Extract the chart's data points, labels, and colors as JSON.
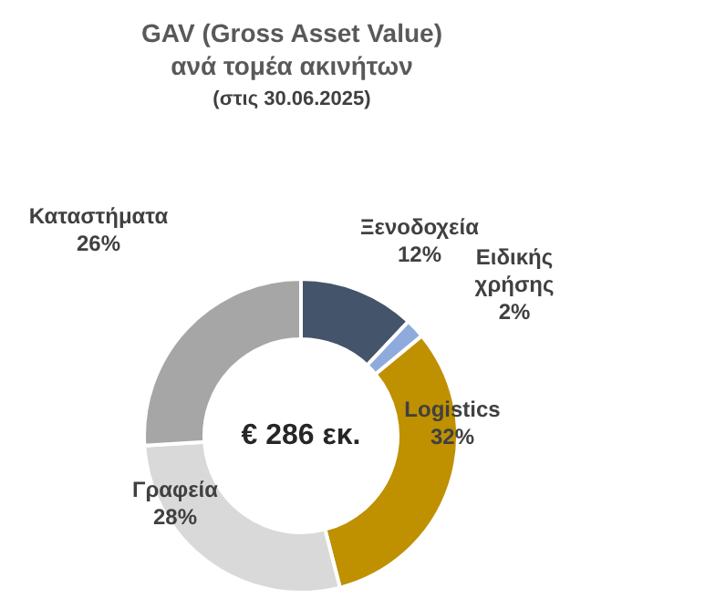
{
  "chart_data": {
    "type": "donut",
    "title": "GAV (Gross Asset Value)\nανά τομέα ακινήτων",
    "subtitle": "(στις 30.06.2025)",
    "categories": [
      "Ξενοδοχεία",
      "Ειδικής χρήσης",
      "Logistics",
      "Γραφεία",
      "Καταστήματα"
    ],
    "values": [
      12,
      2,
      32,
      28,
      26
    ],
    "value_labels": [
      "12%",
      "2%",
      "32%",
      "28%",
      "26%"
    ],
    "colors": [
      "#44546a",
      "#8faadc",
      "#bf9000",
      "#d9d9d9",
      "#a6a6a6"
    ],
    "annotations": [
      "€ 286 εκ."
    ],
    "legend": false
  }
}
